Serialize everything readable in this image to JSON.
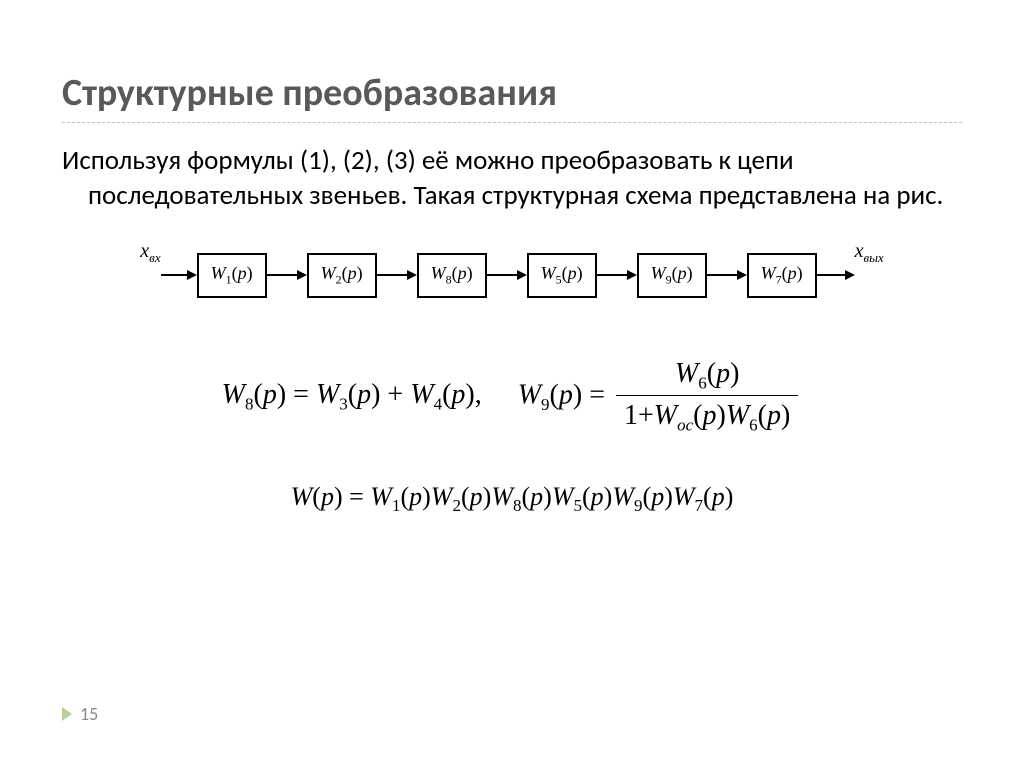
{
  "title": "Структурные преобразования",
  "body_text": "Используя формулы (1), (2), (3) её можно преобразовать к цепи последовательных звеньев. Такая структурная схема представлена на рис.",
  "diagram": {
    "input_main": "x",
    "input_sub": "вх",
    "output_main": "x",
    "output_sub": "вых",
    "blocks": [
      {
        "label": "W",
        "sub": "1",
        "arg": "p"
      },
      {
        "label": "W",
        "sub": "2",
        "arg": "p"
      },
      {
        "label": "W",
        "sub": "8",
        "arg": "p"
      },
      {
        "label": "W",
        "sub": "5",
        "arg": "p"
      },
      {
        "label": "W",
        "sub": "9",
        "arg": "p"
      },
      {
        "label": "W",
        "sub": "7",
        "arg": "p"
      }
    ],
    "arrow_first_len": 26,
    "arrow_between_len": 30,
    "arrow_last_len": 28,
    "border_color": "#000000",
    "background_color": "#ffffff"
  },
  "formula_W8": {
    "lhs": {
      "w": "W",
      "sub": "8",
      "arg": "p"
    },
    "rhs_a": {
      "w": "W",
      "sub": "3",
      "arg": "p"
    },
    "rhs_b": {
      "w": "W",
      "sub": "4",
      "arg": "p"
    },
    "comma": ","
  },
  "formula_W9": {
    "lhs": {
      "w": "W",
      "sub": "9",
      "arg": "p"
    },
    "num": {
      "w": "W",
      "sub": "6",
      "arg": "p"
    },
    "den_one": "1",
    "den_a": {
      "w": "W",
      "sub": "ос",
      "arg": "p"
    },
    "den_b": {
      "w": "W",
      "sub": "6",
      "arg": "p"
    }
  },
  "formula_W": {
    "lhs": {
      "w": "W",
      "arg": "p"
    },
    "terms": [
      {
        "w": "W",
        "sub": "1",
        "arg": "p"
      },
      {
        "w": "W",
        "sub": "2",
        "arg": "p"
      },
      {
        "w": "W",
        "sub": "8",
        "arg": "p"
      },
      {
        "w": "W",
        "sub": "5",
        "arg": "p"
      },
      {
        "w": "W",
        "sub": "9",
        "arg": "p"
      },
      {
        "w": "W",
        "sub": "7",
        "arg": "p"
      }
    ]
  },
  "page_number": "15",
  "colors": {
    "title": "#595959",
    "underline": "#c0c0c0",
    "text": "#000000",
    "footer_chevron": "#b8d098",
    "footer_num": "#8a8a8a"
  }
}
